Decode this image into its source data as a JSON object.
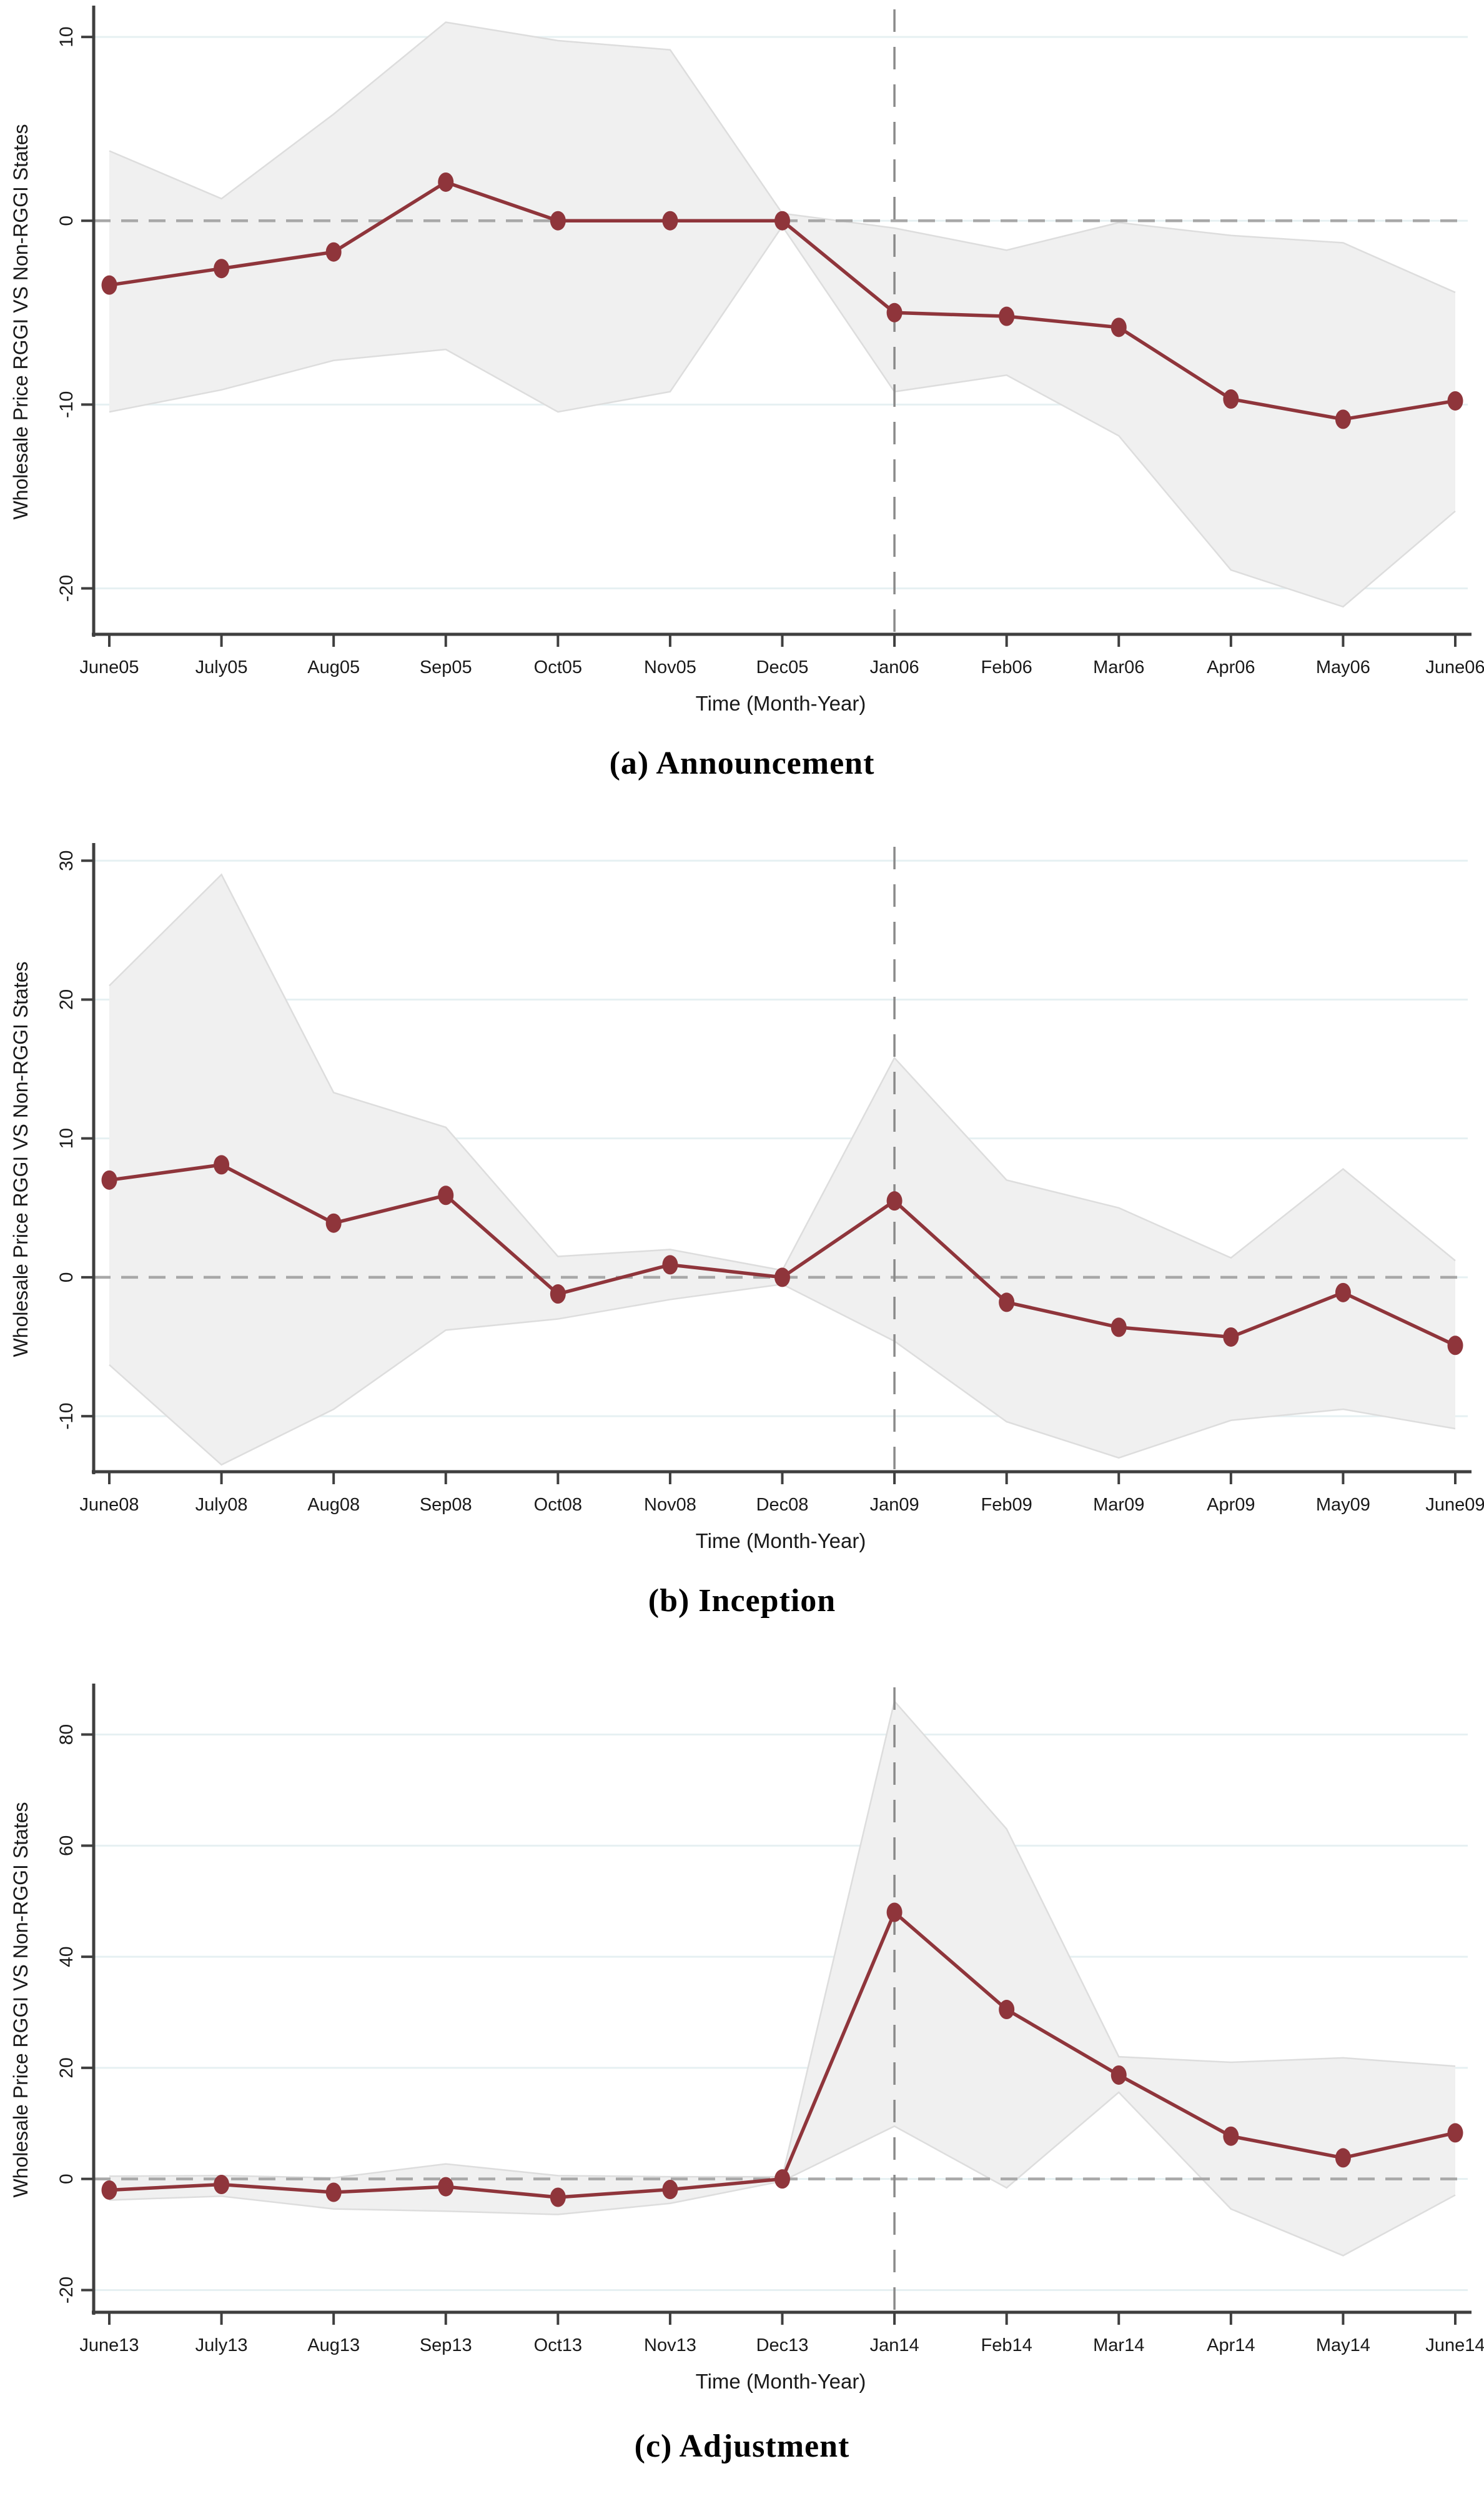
{
  "page": {
    "background": "#ffffff"
  },
  "colors": {
    "line": "#8f353b",
    "marker": "#8f353b",
    "band_fill": "#f0f0f0",
    "band_edge": "#dddddd",
    "gridline": "#e6f0f2",
    "zero_dash": "#a8a8a8",
    "event_dash": "#8a8a8a",
    "axis": "#3f3f3f",
    "tick_text": "#1a1a1a"
  },
  "chart_data": [
    {
      "type": "line",
      "title": "(a) Announcement",
      "xlabel": "Time (Month-Year)",
      "ylabel": "Wholesale Price RGGI VS Non-RGGI States",
      "categories": [
        "June05",
        "July05",
        "Aug05",
        "Sep05",
        "Oct05",
        "Nov05",
        "Dec05",
        "Jan06",
        "Feb06",
        "Mar06",
        "Apr06",
        "May06",
        "June06"
      ],
      "series": [
        {
          "name": "point estimate",
          "values": [
            -3.5,
            -2.6,
            -1.7,
            2.1,
            0,
            0,
            0,
            -5.0,
            -5.2,
            -5.8,
            -9.7,
            -10.8,
            -9.8
          ]
        },
        {
          "name": "ci upper",
          "values": [
            3.8,
            1.2,
            5.8,
            10.8,
            9.8,
            9.3,
            0.4,
            -0.4,
            -1.6,
            -0.1,
            -0.8,
            -1.2,
            -3.9
          ]
        },
        {
          "name": "ci lower",
          "values": [
            -10.4,
            -9.2,
            -7.6,
            -7.0,
            -10.4,
            -9.3,
            -0.3,
            -9.3,
            -8.4,
            -11.7,
            -19.0,
            -21.0,
            -15.8
          ]
        }
      ],
      "yticks": [
        10,
        0,
        -10,
        -20
      ],
      "ylim": [
        -22.5,
        11.5
      ],
      "zero_line": true,
      "event_line_index": 7,
      "event_line_label": "Jan06",
      "grid": true,
      "legend_position": "none"
    },
    {
      "type": "line",
      "title": "(b) Inception",
      "xlabel": "Time (Month-Year)",
      "ylabel": "Wholesale Price RGGI VS Non-RGGI States",
      "categories": [
        "June08",
        "July08",
        "Aug08",
        "Sep08",
        "Oct08",
        "Nov08",
        "Dec08",
        "Jan09",
        "Feb09",
        "Mar09",
        "Apr09",
        "May09",
        "June09"
      ],
      "series": [
        {
          "name": "point estimate",
          "values": [
            7.0,
            8.1,
            3.9,
            5.9,
            -1.2,
            0.9,
            0,
            5.5,
            -1.8,
            -3.6,
            -4.3,
            -1.1,
            -4.9
          ]
        },
        {
          "name": "ci upper",
          "values": [
            21.0,
            29.0,
            13.3,
            10.8,
            1.5,
            2.0,
            0.5,
            15.8,
            7.0,
            5.0,
            1.4,
            7.8,
            1.2
          ]
        },
        {
          "name": "ci lower",
          "values": [
            -6.3,
            -13.5,
            -9.5,
            -3.8,
            -3.0,
            -1.6,
            -0.5,
            -4.6,
            -10.4,
            -13.0,
            -10.3,
            -9.5,
            -10.9
          ]
        }
      ],
      "yticks": [
        30,
        20,
        10,
        0,
        -10
      ],
      "ylim": [
        -14,
        31
      ],
      "zero_line": true,
      "event_line_index": 7,
      "event_line_label": "Jan09",
      "grid": true,
      "legend_position": "none"
    },
    {
      "type": "line",
      "title": "(c) Adjustment",
      "xlabel": "Time (Month-Year)",
      "ylabel": "Wholesale Price RGGI VS Non-RGGI States",
      "categories": [
        "June13",
        "July13",
        "Aug13",
        "Sep13",
        "Oct13",
        "Nov13",
        "Dec13",
        "Jan14",
        "Feb14",
        "Mar14",
        "Apr14",
        "May14",
        "June14"
      ],
      "series": [
        {
          "name": "point estimate",
          "values": [
            -2.0,
            -1.0,
            -2.4,
            -1.4,
            -3.3,
            -1.9,
            0,
            48.0,
            30.5,
            18.7,
            7.7,
            3.8,
            8.3
          ]
        },
        {
          "name": "ci upper",
          "values": [
            0.5,
            0.6,
            0.2,
            2.7,
            0.6,
            0.4,
            0.4,
            86.0,
            63.0,
            22.0,
            21.0,
            21.8,
            20.3
          ]
        },
        {
          "name": "ci lower",
          "values": [
            -3.8,
            -3.1,
            -5.4,
            -5.8,
            -6.4,
            -4.4,
            -0.4,
            9.5,
            -1.6,
            15.6,
            -5.4,
            -13.8,
            -2.9
          ]
        }
      ],
      "yticks": [
        80,
        60,
        40,
        20,
        0,
        -20
      ],
      "ylim": [
        -24,
        88.5
      ],
      "zero_line": true,
      "event_line_index": 7,
      "event_line_label": "Jan14",
      "grid": true,
      "legend_position": "none"
    }
  ]
}
